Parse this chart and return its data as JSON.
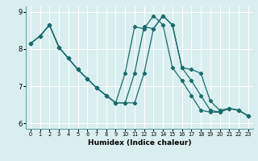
{
  "xlabel": "Humidex (Indice chaleur)",
  "bg_color": "#d9efef",
  "grid_color": "#ffffff",
  "line_color": "#1a6b6b",
  "marker": "D",
  "markersize": 2.2,
  "linewidth": 0.9,
  "xlim": [
    -0.5,
    23.5
  ],
  "ylim": [
    5.85,
    9.15
  ],
  "yticks": [
    6,
    7,
    8,
    9
  ],
  "xticks": [
    0,
    1,
    2,
    3,
    4,
    5,
    6,
    7,
    8,
    9,
    10,
    11,
    12,
    13,
    14,
    15,
    16,
    17,
    18,
    19,
    20,
    21,
    22,
    23
  ],
  "series": [
    [
      8.15,
      8.35,
      8.65,
      8.05,
      7.75,
      7.45,
      7.2,
      6.95,
      6.75,
      6.55,
      7.35,
      8.6,
      8.55,
      8.9,
      8.65,
      7.5,
      7.15,
      6.75,
      6.35,
      6.3,
      6.3,
      6.4,
      6.35,
      6.2
    ],
    [
      8.15,
      8.35,
      8.65,
      8.05,
      7.75,
      7.45,
      7.2,
      6.95,
      6.75,
      6.55,
      6.55,
      7.35,
      8.6,
      8.55,
      8.9,
      8.65,
      7.5,
      7.15,
      6.75,
      6.35,
      6.3,
      6.4,
      6.35,
      6.2
    ],
    [
      8.15,
      8.35,
      8.65,
      8.05,
      7.75,
      7.45,
      7.2,
      6.95,
      6.75,
      6.55,
      6.55,
      6.55,
      7.35,
      8.55,
      8.9,
      8.65,
      7.5,
      7.45,
      7.35,
      6.6,
      6.35,
      6.4,
      6.35,
      6.2
    ]
  ]
}
